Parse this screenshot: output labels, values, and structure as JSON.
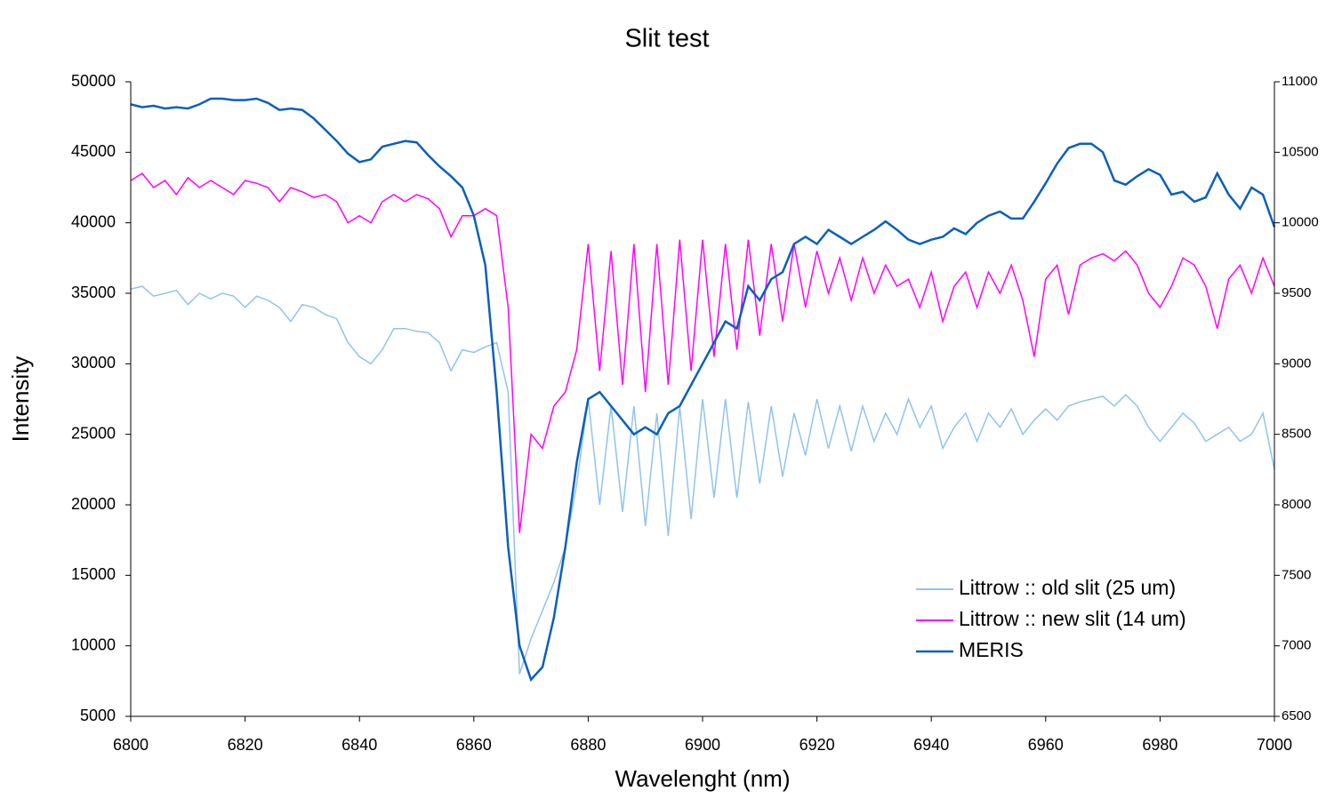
{
  "chart_data": {
    "type": "line",
    "title": "Slit test",
    "xlabel": "Wavelenght (nm)",
    "ylabel": "Intensity",
    "x": [
      6800,
      6802,
      6804,
      6806,
      6808,
      6810,
      6812,
      6814,
      6816,
      6818,
      6820,
      6822,
      6824,
      6826,
      6828,
      6830,
      6832,
      6834,
      6836,
      6838,
      6840,
      6842,
      6844,
      6846,
      6848,
      6850,
      6852,
      6854,
      6856,
      6858,
      6860,
      6862,
      6864,
      6866,
      6868,
      6870,
      6872,
      6874,
      6876,
      6878,
      6880,
      6882,
      6884,
      6886,
      6888,
      6890,
      6892,
      6894,
      6896,
      6898,
      6900,
      6902,
      6904,
      6906,
      6908,
      6910,
      6912,
      6914,
      6916,
      6918,
      6920,
      6922,
      6924,
      6926,
      6928,
      6930,
      6932,
      6934,
      6936,
      6938,
      6940,
      6942,
      6944,
      6946,
      6948,
      6950,
      6952,
      6954,
      6956,
      6958,
      6960,
      6962,
      6964,
      6966,
      6968,
      6970,
      6972,
      6974,
      6976,
      6978,
      6980,
      6982,
      6984,
      6986,
      6988,
      6990,
      6992,
      6994,
      6996,
      6998,
      7000
    ],
    "series": [
      {
        "name": "Littrow :: old slit (25 um)",
        "color": "#8fc3f0",
        "axis": "y",
        "values": [
          35300,
          35500,
          34800,
          35000,
          35200,
          34200,
          35000,
          34600,
          35000,
          34800,
          34000,
          34800,
          34500,
          34000,
          33000,
          34200,
          34000,
          33500,
          33200,
          31500,
          30500,
          30000,
          31000,
          32500,
          32500,
          32300,
          32200,
          31500,
          29500,
          31000,
          30800,
          31200,
          31500,
          28000,
          8000,
          10500,
          12500,
          14500,
          17000,
          21500,
          27500,
          20000,
          27000,
          19500,
          27000,
          18500,
          26500,
          17800,
          27000,
          19000,
          27500,
          20500,
          27500,
          20500,
          27300,
          21500,
          27000,
          22000,
          26500,
          23500,
          27500,
          24000,
          27000,
          23800,
          27000,
          24500,
          26500,
          25000,
          27500,
          25500,
          27000,
          24000,
          25500,
          26500,
          24500,
          26500,
          25500,
          26800,
          25000,
          26000,
          26800,
          26000,
          27000,
          27300,
          27500,
          27700,
          27000,
          27800,
          27000,
          25500,
          24500,
          25500,
          26500,
          25800,
          24500,
          25000,
          25500,
          24500,
          25000,
          26500,
          22500
        ]
      },
      {
        "name": "Littrow :: new slit (14 um)",
        "color": "#ff00ff",
        "axis": "y",
        "values": [
          43000,
          43500,
          42500,
          43000,
          42000,
          43200,
          42500,
          43000,
          42500,
          42000,
          43000,
          42800,
          42500,
          41500,
          42500,
          42200,
          41800,
          42000,
          41500,
          40000,
          40500,
          40000,
          41500,
          42000,
          41500,
          42000,
          41700,
          41000,
          39000,
          40500,
          40500,
          41000,
          40500,
          34000,
          18000,
          25000,
          24000,
          27000,
          28000,
          31000,
          38500,
          29500,
          38000,
          28500,
          38500,
          28000,
          38500,
          28500,
          38800,
          29500,
          38800,
          30500,
          38500,
          31000,
          38800,
          32000,
          38500,
          33000,
          38500,
          34000,
          38000,
          35000,
          37500,
          34500,
          37500,
          35000,
          37000,
          35500,
          36000,
          34000,
          36500,
          33000,
          35500,
          36500,
          34000,
          36500,
          35000,
          37000,
          34500,
          30500,
          36000,
          37000,
          33500,
          37000,
          37500,
          37800,
          37300,
          38000,
          37000,
          35000,
          34000,
          35500,
          37500,
          37000,
          35500,
          32500,
          36000,
          37000,
          35000,
          37500,
          35500
        ]
      },
      {
        "name": "MERIS",
        "color": "#0a5fbf",
        "axis": "y2",
        "values": [
          10840,
          10820,
          10830,
          10810,
          10820,
          10810,
          10840,
          10880,
          10880,
          10870,
          10870,
          10880,
          10850,
          10800,
          10810,
          10800,
          10740,
          10660,
          10580,
          10490,
          10430,
          10450,
          10540,
          10560,
          10580,
          10570,
          10480,
          10400,
          10330,
          10250,
          10050,
          9700,
          8800,
          7700,
          7000,
          6760,
          6850,
          7200,
          7700,
          8300,
          8750,
          8800,
          8700,
          8600,
          8500,
          8550,
          8500,
          8650,
          8700,
          8850,
          9000,
          9150,
          9300,
          9250,
          9550,
          9450,
          9600,
          9650,
          9850,
          9900,
          9850,
          9950,
          9900,
          9850,
          9900,
          9950,
          10010,
          9950,
          9880,
          9850,
          9880,
          9900,
          9960,
          9920,
          10000,
          10050,
          10080,
          10030,
          10030,
          10150,
          10280,
          10420,
          10530,
          10560,
          10560,
          10500,
          10300,
          10270,
          10330,
          10380,
          10340,
          10200,
          10220,
          10150,
          10180,
          10350,
          10200,
          10100,
          10250,
          10200,
          9970
        ]
      }
    ],
    "xlim": [
      6800,
      7000
    ],
    "xticks": [
      6800,
      6820,
      6840,
      6860,
      6880,
      6900,
      6920,
      6940,
      6960,
      6980,
      7000
    ],
    "ylim": [
      5000,
      50000
    ],
    "yticks": [
      5000,
      10000,
      15000,
      20000,
      25000,
      30000,
      35000,
      40000,
      45000,
      50000
    ],
    "y2lim": [
      6500,
      11000
    ],
    "y2ticks": [
      6500,
      7000,
      7500,
      8000,
      8500,
      9000,
      9500,
      10000,
      10500,
      11000
    ],
    "legend": "lower right",
    "grid": false
  }
}
